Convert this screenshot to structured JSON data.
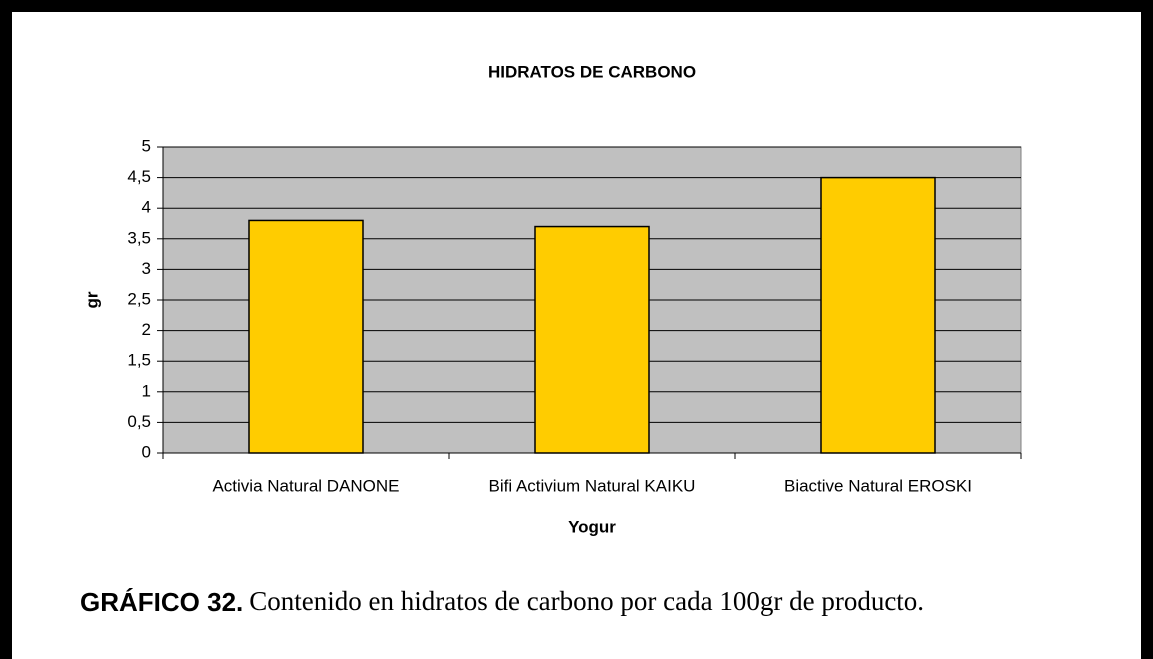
{
  "chart_data": {
    "type": "bar",
    "title": "HIDRATOS DE CARBONO",
    "x_label": "Yogur",
    "y_label": "gr",
    "categories": [
      "Activia Natural DANONE",
      "Bifi Activium Natural KAIKU",
      "Biactive Natural EROSKI"
    ],
    "values": [
      3.8,
      3.7,
      4.5
    ],
    "color": "#ffcc00",
    "ylim": [
      0,
      5
    ],
    "yticks": [
      0,
      {
        "value": 0.5,
        "label": "0,5"
      },
      1,
      {
        "value": 1.5,
        "label": "1,5"
      },
      2,
      {
        "value": 2.5,
        "label": "2,5"
      },
      3,
      {
        "value": 3.5,
        "label": "3,5"
      },
      4,
      {
        "value": 4.5,
        "label": "4,5"
      },
      5
    ],
    "grid": true,
    "plot_background": "#c0c0c0"
  },
  "caption": {
    "label": "GRÁFICO 32.",
    "text": "Contenido en hidratos de carbono por cada 100gr de producto."
  }
}
